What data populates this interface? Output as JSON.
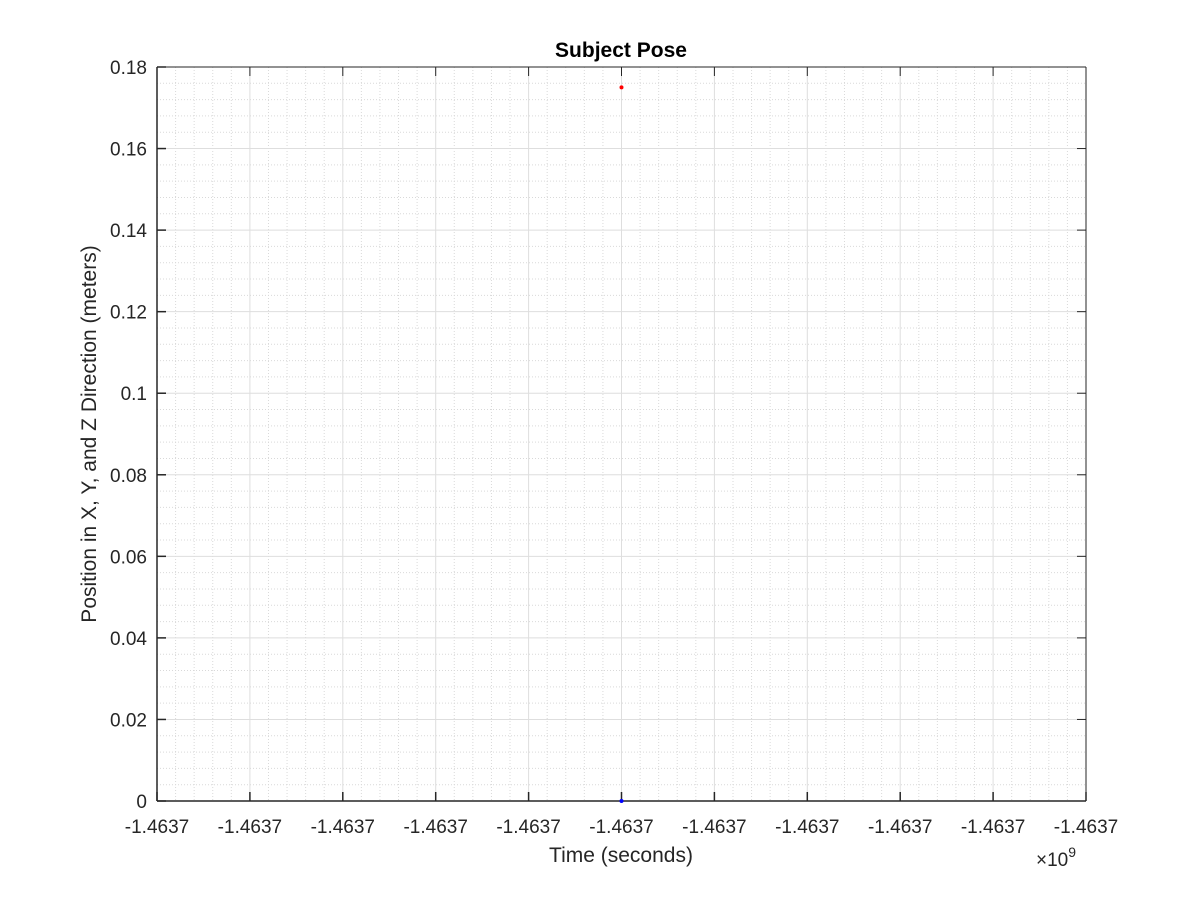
{
  "chart_data": {
    "type": "scatter",
    "title": "Subject Pose",
    "xlabel": "Time (seconds)",
    "ylabel": "Position in X, Y, and Z Direction (meters)",
    "x_exponent_base": "×10",
    "x_exponent_power": "9",
    "xtick_labels": [
      "-1.4637",
      "-1.4637",
      "-1.4637",
      "-1.4637",
      "-1.4637",
      "-1.4637",
      "-1.4637",
      "-1.4637",
      "-1.4637",
      "-1.4637",
      "-1.4637"
    ],
    "ytick_labels": [
      "0",
      "0.02",
      "0.04",
      "0.06",
      "0.08",
      "0.1",
      "0.12",
      "0.14",
      "0.16",
      "0.18"
    ],
    "yticks": [
      0,
      0.02,
      0.04,
      0.06,
      0.08,
      0.1,
      0.12,
      0.14,
      0.16,
      0.18
    ],
    "ylim": [
      0,
      0.18
    ],
    "grid": true,
    "minor_grid": true,
    "series": [
      {
        "color": "#ff0000",
        "points": [
          {
            "x_tick": 5,
            "y": 0.175
          }
        ]
      },
      {
        "color": "#0000ff",
        "points": [
          {
            "x_tick": 5,
            "y": 0
          }
        ]
      }
    ]
  }
}
